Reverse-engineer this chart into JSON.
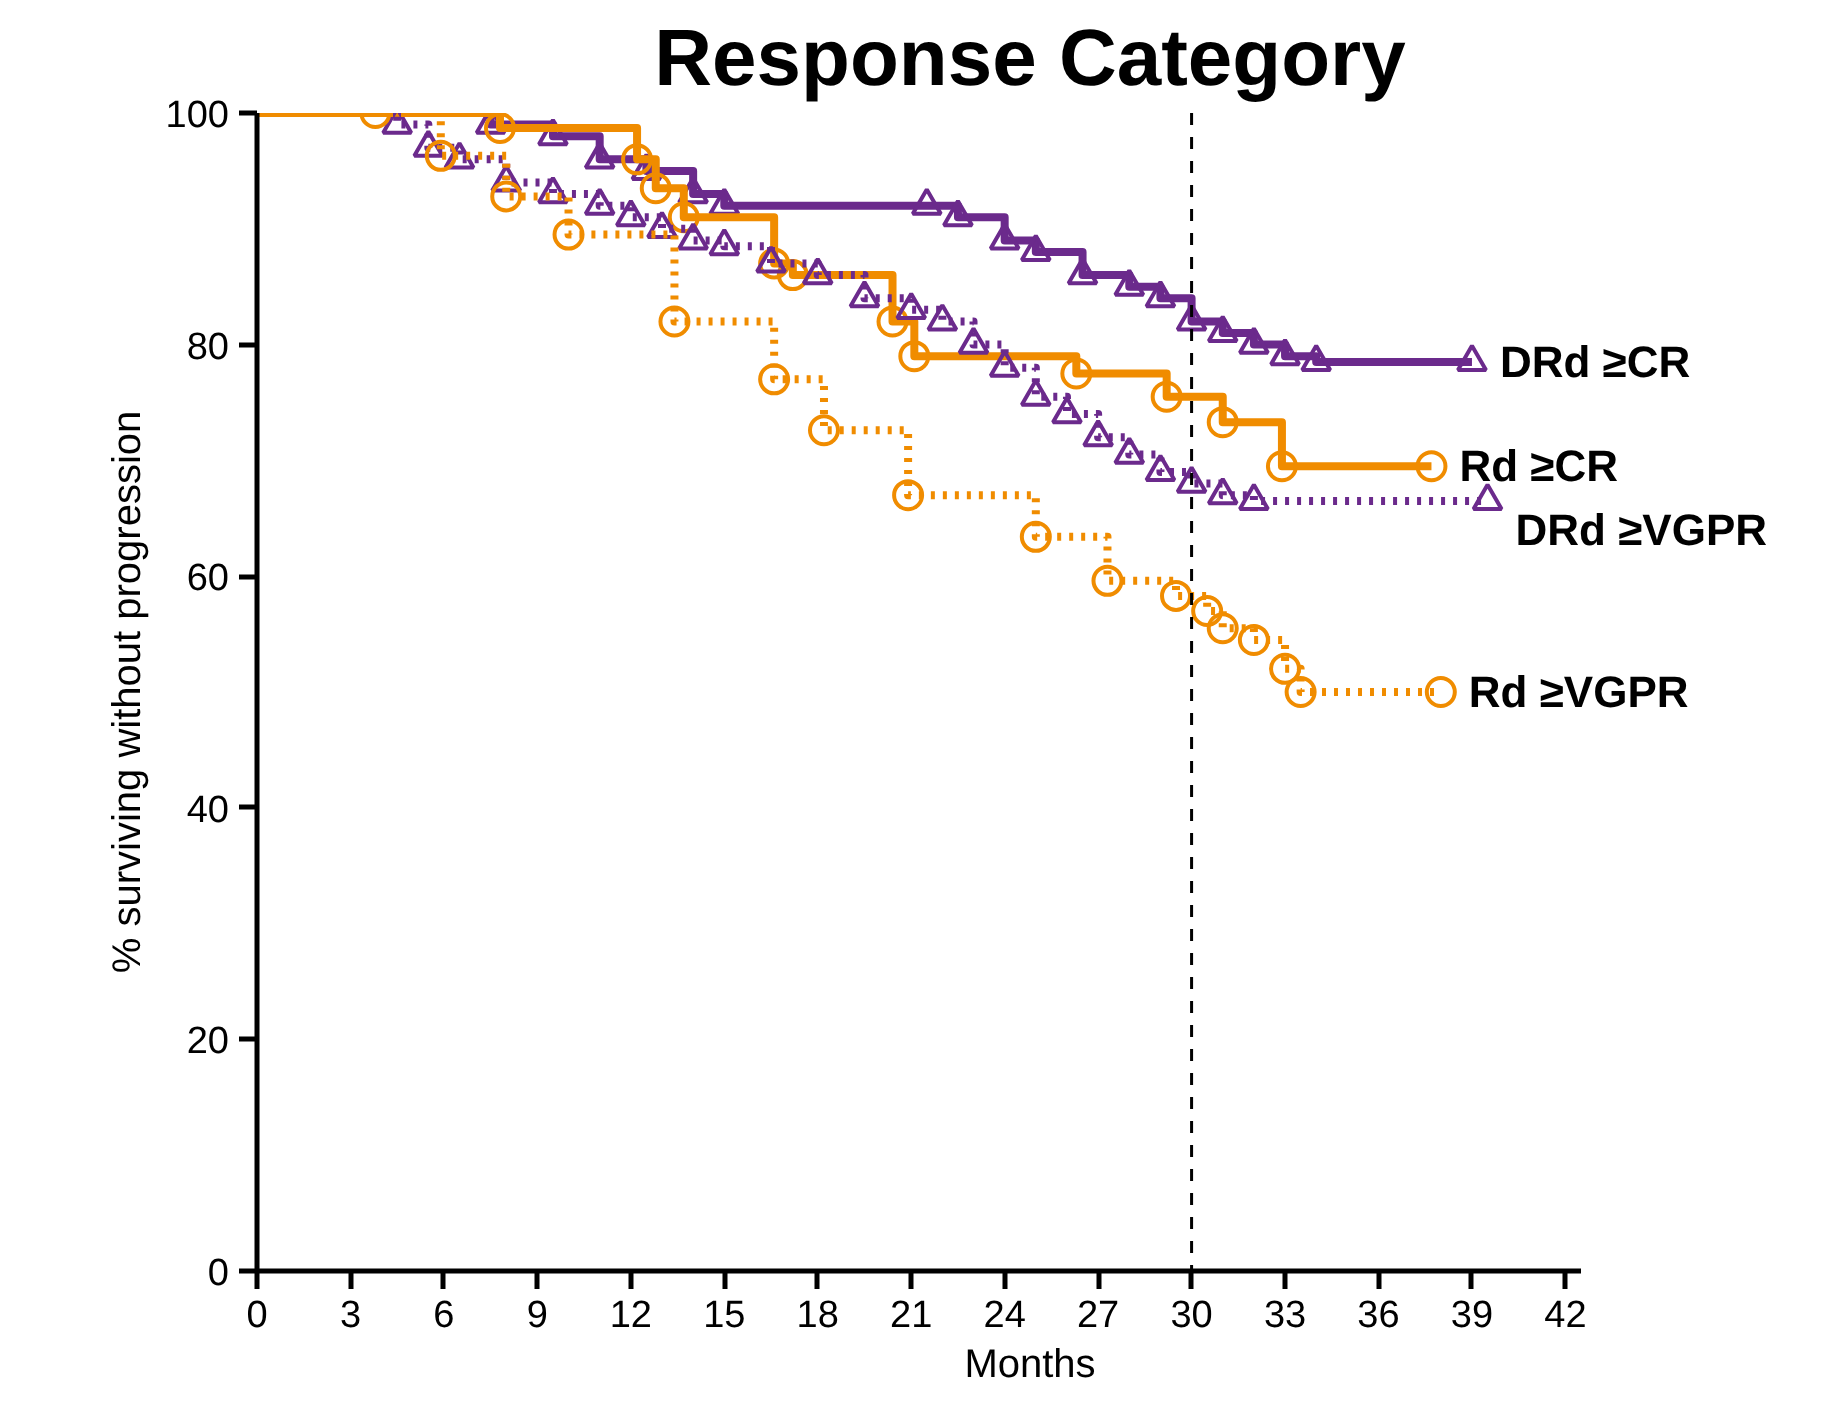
{
  "chart_data": {
    "type": "step",
    "title": "Response Category",
    "xlabel": "Months",
    "ylabel": "% surviving without progression",
    "xlim": [
      0,
      42.5
    ],
    "ylim": [
      0,
      100
    ],
    "xticks": [
      0,
      3,
      6,
      9,
      12,
      15,
      18,
      21,
      24,
      27,
      30,
      33,
      36,
      39,
      42
    ],
    "yticks": [
      0,
      20,
      40,
      60,
      80,
      100
    ],
    "grid": false,
    "legend": false,
    "ref_lines": [
      {
        "axis": "x",
        "value": 30,
        "line_style": "dashed",
        "color": "#000000"
      }
    ],
    "series": [
      {
        "name": "DRd ≥CR",
        "color": "#6b2a8c",
        "marker": "triangle",
        "line_style": "solid",
        "x": [
          0,
          7.5,
          9.5,
          11,
          12.5,
          14,
          15,
          21.5,
          22.5,
          24,
          25,
          26.5,
          28,
          29,
          30,
          31,
          32,
          33,
          34,
          39
        ],
        "values": [
          100,
          99,
          98,
          96,
          95,
          93,
          92,
          92,
          91,
          89,
          88,
          86,
          85,
          84,
          82,
          81,
          80,
          79,
          78.5,
          78.5
        ]
      },
      {
        "name": "Rd ≥CR",
        "color": "#f08c00",
        "marker": "circle",
        "line_style": "solid",
        "x": [
          0,
          7.8,
          12.2,
          12.8,
          13.7,
          16.6,
          17.2,
          20.4,
          21.1,
          26.3,
          29.2,
          31,
          32.9,
          37.7
        ],
        "values": [
          100,
          98.7,
          96,
          93.5,
          91,
          87,
          86,
          82,
          79,
          77.5,
          75.5,
          73.3,
          69.5,
          69.5
        ]
      },
      {
        "name": "DRd ≥VGPR",
        "color": "#6b2a8c",
        "marker": "triangle",
        "line_style": "dotted",
        "x": [
          0,
          4.5,
          5.5,
          6.5,
          8,
          9.5,
          11,
          12,
          13,
          14,
          15,
          16.5,
          18,
          19.5,
          21,
          22,
          23,
          24,
          25,
          26,
          27,
          28,
          29,
          30,
          31,
          32,
          39.5
        ],
        "values": [
          100,
          99,
          97,
          96,
          94,
          93,
          92,
          91,
          90,
          89,
          88.5,
          87,
          86,
          84,
          83,
          82,
          80,
          78,
          75.5,
          74,
          72,
          70.5,
          69,
          68,
          67,
          66.5,
          66.5
        ]
      },
      {
        "name": "Rd ≥VGPR",
        "color": "#f08c00",
        "marker": "circle",
        "line_style": "dotted",
        "x": [
          0,
          3.8,
          5.9,
          8,
          10,
          13.4,
          16.6,
          18.2,
          20.9,
          25,
          27.3,
          29.5,
          30.5,
          31,
          32,
          33,
          33.5,
          38
        ],
        "values": [
          100,
          100,
          96.3,
          92.8,
          89.5,
          82,
          77,
          72.6,
          67,
          63.4,
          59.6,
          58.3,
          57,
          55.5,
          54.5,
          52,
          50,
          50
        ]
      }
    ]
  }
}
